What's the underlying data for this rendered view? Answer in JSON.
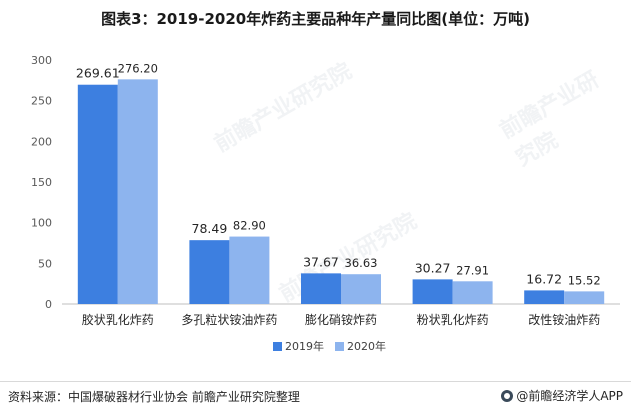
{
  "title": "图表3：2019-2020年炸药主要品种年产量同比图(单位：万吨)",
  "chart_data": {
    "type": "bar",
    "categories": [
      "胶状乳化炸药",
      "多孔粒状铵油炸药",
      "膨化硝铵炸药",
      "粉状乳化炸药",
      "改性铵油炸药"
    ],
    "series": [
      {
        "name": "2019年",
        "values": [
          269.61,
          78.49,
          37.67,
          30.27,
          16.72
        ],
        "color": "#3d7fe0"
      },
      {
        "name": "2020年",
        "values": [
          276.2,
          82.9,
          36.63,
          27.91,
          15.52
        ],
        "color": "#8db4ee"
      }
    ],
    "data_labels": [
      [
        "269.61",
        "78.49",
        "37.67",
        "30.27",
        "16.72"
      ],
      [
        "276.20",
        "82.90",
        "36.63",
        "27.91",
        "15.52"
      ]
    ],
    "ylim": [
      0,
      300
    ],
    "yticks": [
      "0",
      "50",
      "100",
      "150",
      "200",
      "250",
      "300"
    ],
    "legend": "bottom"
  },
  "footer": {
    "source": "资料来源：中国爆破器材行业协会 前瞻产业研究院整理",
    "brand": "@前瞻经济学人APP"
  },
  "watermark": "前瞻产业研究院"
}
